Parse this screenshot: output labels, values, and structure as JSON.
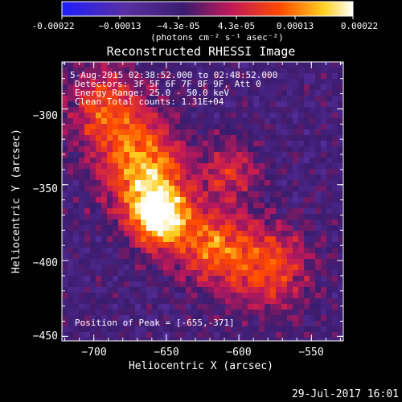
{
  "chart_data": {
    "type": "heatmap",
    "title": "Reconstructed RHESSI Image",
    "xlabel": "Heliocentric X (arcsec)",
    "ylabel": "Heliocentric Y (arcsec)",
    "xlim": [
      -722,
      -528
    ],
    "ylim": [
      -453,
      -269
    ],
    "xticks": [
      -700,
      -650,
      -600,
      -550
    ],
    "yticks": [
      -300,
      -350,
      -400,
      -450
    ],
    "x_tick_labels": [
      "−700",
      "−650",
      "−600",
      "−550"
    ],
    "y_tick_labels": [
      "−300",
      "−350",
      "−400",
      "−450"
    ],
    "colorbar": {
      "range": [
        -0.00022,
        0.00022
      ],
      "tick_labels": [
        "-0.00022",
        "−0.00013",
        "−4.3e-05",
        "4.3e-05",
        "0.00013",
        "0.00022"
      ],
      "unit": "(photons cm⁻² s⁻¹ asec⁻²)",
      "colors": [
        "#1e1eff",
        "#5a2fa0",
        "#3a1c6e",
        "#c0185a",
        "#ff4a00",
        "#ffd020",
        "#ffffff"
      ]
    },
    "annotations": {
      "time": "5-Aug-2015 02:38:52.000 to 02:48:52.000",
      "detectors": "Detectors: 3F 5F 6F 7F 8F 9F, Att 0",
      "energy": "Energy Range: 25.0 - 50.0 keV",
      "clean": "Clean    Total counts: 1.31E+04",
      "peak": "Position of Peak = [-655,-371]"
    },
    "sources": [
      {
        "x": -655,
        "y": -371,
        "peak": 1.0,
        "sigma": 14
      },
      {
        "x": -665,
        "y": -340,
        "peak": 0.75,
        "sigma": 20
      },
      {
        "x": -690,
        "y": -300,
        "peak": 0.55,
        "sigma": 20
      },
      {
        "x": -620,
        "y": -390,
        "peak": 0.6,
        "sigma": 18
      },
      {
        "x": -580,
        "y": -405,
        "peak": 0.55,
        "sigma": 20
      },
      {
        "x": -605,
        "y": -340,
        "peak": 0.4,
        "sigma": 14
      }
    ]
  },
  "footer": {
    "timestamp": "29-Jul-2017 16:01"
  }
}
